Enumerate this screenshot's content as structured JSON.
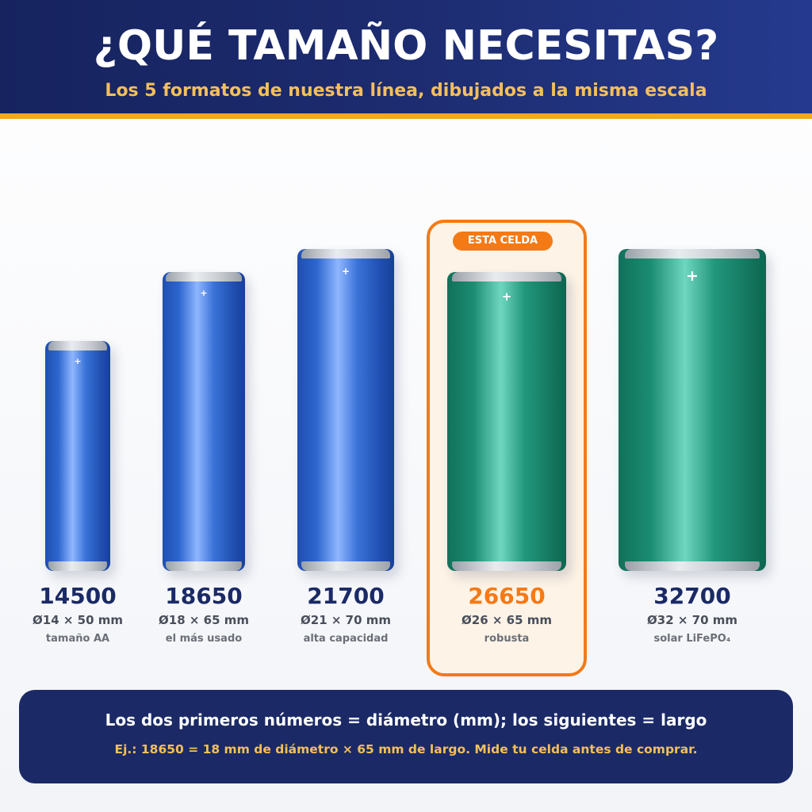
{
  "header": {
    "title": "¿QUÉ TAMAÑO NECESITAS?",
    "subtitle": "Los 5 formatos de nuestra línea, dibujados a la misma escala"
  },
  "badge": "ESTA CELDA",
  "cells": [
    {
      "code": "14500",
      "dimensions": "Ø14 × 50 mm",
      "description": "tamaño AA",
      "diameter_mm": 14,
      "length_mm": 50,
      "color": "blue",
      "highlighted": false
    },
    {
      "code": "18650",
      "dimensions": "Ø18 × 65 mm",
      "description": "el más usado",
      "diameter_mm": 18,
      "length_mm": 65,
      "color": "blue",
      "highlighted": false
    },
    {
      "code": "21700",
      "dimensions": "Ø21 × 70 mm",
      "description": "alta capacidad",
      "diameter_mm": 21,
      "length_mm": 70,
      "color": "blue",
      "highlighted": false
    },
    {
      "code": "26650",
      "dimensions": "Ø26 × 65 mm",
      "description": "robusta",
      "diameter_mm": 26,
      "length_mm": 65,
      "color": "green",
      "highlighted": true
    },
    {
      "code": "32700",
      "dimensions": "Ø32 × 70 mm",
      "description": "solar LiFePO₄",
      "diameter_mm": 32,
      "length_mm": 70,
      "color": "green",
      "highlighted": false
    }
  ],
  "plus_symbol": "+",
  "footer": {
    "main": "Los dos primeros números = diámetro (mm); los siguientes = largo",
    "example": "Ej.: 18650 = 18 mm de diámetro × 65 mm de largo. Mide tu celda antes de comprar."
  },
  "colors": {
    "navy": "#1b2a66",
    "accent_orange": "#f47a16",
    "gold": "#f5bf5a",
    "blue_cell": "#2d66cf",
    "green_cell": "#1b8d72"
  }
}
